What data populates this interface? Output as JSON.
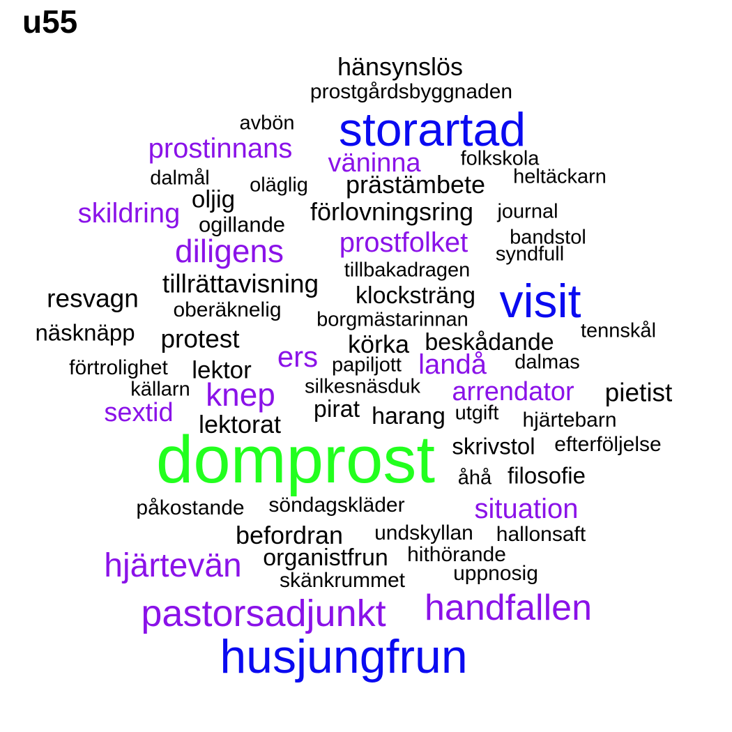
{
  "title": "u55",
  "colors": {
    "black": "#000000",
    "purple": "#8a12e8",
    "blue": "#0a0af0",
    "green": "#22ff1e"
  },
  "words": [
    {
      "text": "hänsynslös",
      "color": "black"
    },
    {
      "text": "prostgårdsbyggnaden",
      "color": "black"
    },
    {
      "text": "avbön",
      "color": "black"
    },
    {
      "text": "storartad",
      "color": "blue"
    },
    {
      "text": "prostinnans",
      "color": "purple"
    },
    {
      "text": "väninna",
      "color": "purple"
    },
    {
      "text": "folkskola",
      "color": "black"
    },
    {
      "text": "dalmål",
      "color": "black"
    },
    {
      "text": "oläglig",
      "color": "black"
    },
    {
      "text": "prästämbete",
      "color": "black"
    },
    {
      "text": "heltäckarn",
      "color": "black"
    },
    {
      "text": "oljig",
      "color": "black"
    },
    {
      "text": "skildring",
      "color": "purple"
    },
    {
      "text": "förlovningsring",
      "color": "black"
    },
    {
      "text": "journal",
      "color": "black"
    },
    {
      "text": "ogillande",
      "color": "black"
    },
    {
      "text": "bandstol",
      "color": "black"
    },
    {
      "text": "prostfolket",
      "color": "purple"
    },
    {
      "text": "diligens",
      "color": "purple"
    },
    {
      "text": "syndfull",
      "color": "black"
    },
    {
      "text": "tillbakadragen",
      "color": "black"
    },
    {
      "text": "tillrättavisning",
      "color": "black"
    },
    {
      "text": "klocksträng",
      "color": "black"
    },
    {
      "text": "resvagn",
      "color": "black"
    },
    {
      "text": "visit",
      "color": "blue"
    },
    {
      "text": "oberäknelig",
      "color": "black"
    },
    {
      "text": "borgmästarinnan",
      "color": "black"
    },
    {
      "text": "näsknäpp",
      "color": "black"
    },
    {
      "text": "tennskål",
      "color": "black"
    },
    {
      "text": "protest",
      "color": "black"
    },
    {
      "text": "körka",
      "color": "black"
    },
    {
      "text": "beskådande",
      "color": "black"
    },
    {
      "text": "ers",
      "color": "purple"
    },
    {
      "text": "papiljott",
      "color": "black"
    },
    {
      "text": "landå",
      "color": "purple"
    },
    {
      "text": "dalmas",
      "color": "black"
    },
    {
      "text": "förtrolighet",
      "color": "black"
    },
    {
      "text": "lektor",
      "color": "black"
    },
    {
      "text": "källarn",
      "color": "black"
    },
    {
      "text": "knep",
      "color": "purple"
    },
    {
      "text": "silkesnäsduk",
      "color": "black"
    },
    {
      "text": "arrendator",
      "color": "purple"
    },
    {
      "text": "pietist",
      "color": "black"
    },
    {
      "text": "sextid",
      "color": "purple"
    },
    {
      "text": "pirat",
      "color": "black"
    },
    {
      "text": "harang",
      "color": "black"
    },
    {
      "text": "utgift",
      "color": "black"
    },
    {
      "text": "hjärtebarn",
      "color": "black"
    },
    {
      "text": "lektorat",
      "color": "black"
    },
    {
      "text": "skrivstol",
      "color": "black"
    },
    {
      "text": "efterföljelse",
      "color": "black"
    },
    {
      "text": "domprost",
      "color": "green"
    },
    {
      "text": "åhå",
      "color": "black"
    },
    {
      "text": "filosofie",
      "color": "black"
    },
    {
      "text": "påkostande",
      "color": "black"
    },
    {
      "text": "söndagskläder",
      "color": "black"
    },
    {
      "text": "situation",
      "color": "purple"
    },
    {
      "text": "befordran",
      "color": "black"
    },
    {
      "text": "undskyllan",
      "color": "black"
    },
    {
      "text": "hallonsaft",
      "color": "black"
    },
    {
      "text": "hjärtevän",
      "color": "purple"
    },
    {
      "text": "organistfrun",
      "color": "black"
    },
    {
      "text": "hithörande",
      "color": "black"
    },
    {
      "text": "uppnosig",
      "color": "black"
    },
    {
      "text": "skänkrummet",
      "color": "black"
    },
    {
      "text": "handfallen",
      "color": "purple"
    },
    {
      "text": "pastorsadjunkt",
      "color": "purple"
    },
    {
      "text": "husjungfrun",
      "color": "blue"
    }
  ]
}
